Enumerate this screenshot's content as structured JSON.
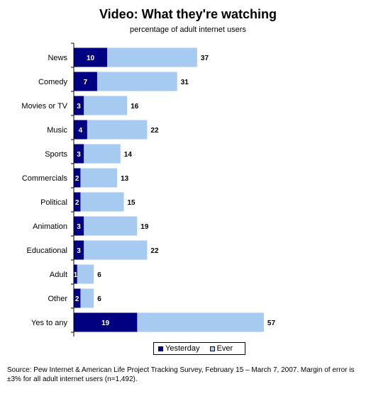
{
  "chart_data": {
    "type": "bar",
    "orientation": "horizontal",
    "title": "Video: What they're watching",
    "subtitle": "percentage of adult internet users",
    "categories": [
      "News",
      "Comedy",
      "Movies or TV",
      "Music",
      "Sports",
      "Commercials",
      "Political",
      "Animation",
      "Educational",
      "Adult",
      "Other",
      "Yes to any"
    ],
    "series": [
      {
        "name": "Yesterday",
        "color": "#000080",
        "values": [
          10,
          7,
          3,
          4,
          3,
          2,
          2,
          3,
          3,
          1,
          2,
          19
        ]
      },
      {
        "name": "Ever",
        "color": "#a6caf0",
        "values": [
          37,
          31,
          16,
          22,
          14,
          13,
          15,
          19,
          22,
          6,
          6,
          57
        ]
      }
    ],
    "xlim": [
      0,
      60
    ],
    "grid": false,
    "legend_position": "bottom"
  },
  "source": "Source:   Pew Internet & American Life Project Tracking Survey, February 15 – March 7, 2007.  Margin of error is ±3% for all adult internet users (n=1,492)."
}
